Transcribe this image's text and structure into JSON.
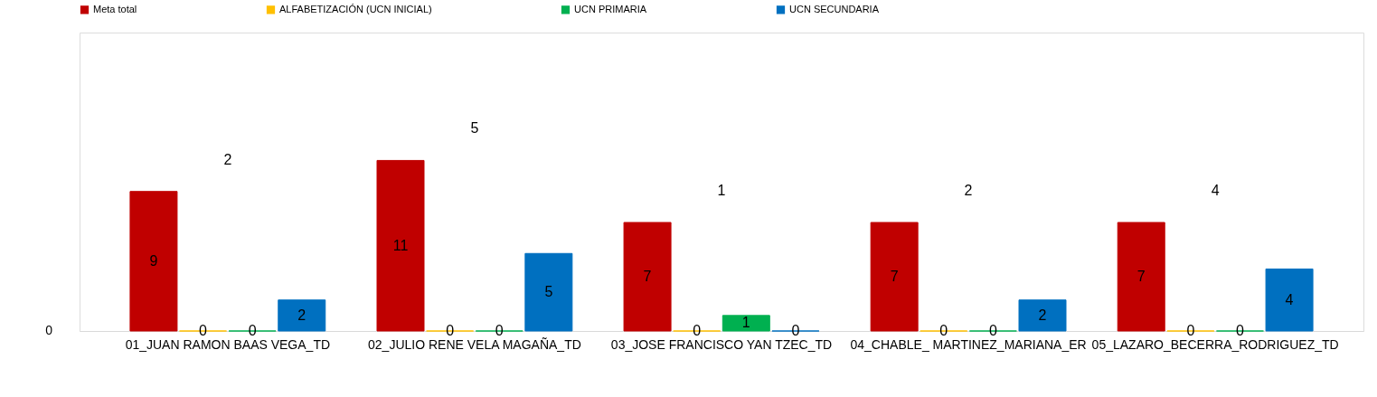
{
  "chart_data": {
    "type": "bar",
    "data_labels": true,
    "legend": "top",
    "categories": [
      "01_JUAN RAMON BAAS VEGA_TD",
      "02_JULIO RENE VELA MAGAÑA_TD",
      "03_JOSE FRANCISCO YAN TZEC_TD",
      "04_CHABLE_ MARTINEZ_MARIANA_ER",
      "05_LAZARO_BECERRA_RODRIGUEZ_TD"
    ],
    "series": [
      {
        "name": "Meta total",
        "color": "#c00000",
        "values": [
          9,
          11,
          7,
          7,
          7
        ]
      },
      {
        "name": "ALFABETIZACIÓN (UCN INICIAL)",
        "color": "#ffc000",
        "values": [
          0,
          0,
          0,
          0,
          0
        ]
      },
      {
        "name": "UCN PRIMARIA",
        "color": "#00b050",
        "values": [
          0,
          0,
          1,
          0,
          0
        ]
      },
      {
        "name": "UCN SECUNDARIA",
        "color": "#0070c0",
        "values": [
          2,
          5,
          0,
          2,
          4
        ]
      }
    ],
    "annotations": [
      "0",
      "2",
      "5",
      "1",
      "2",
      "4"
    ]
  }
}
